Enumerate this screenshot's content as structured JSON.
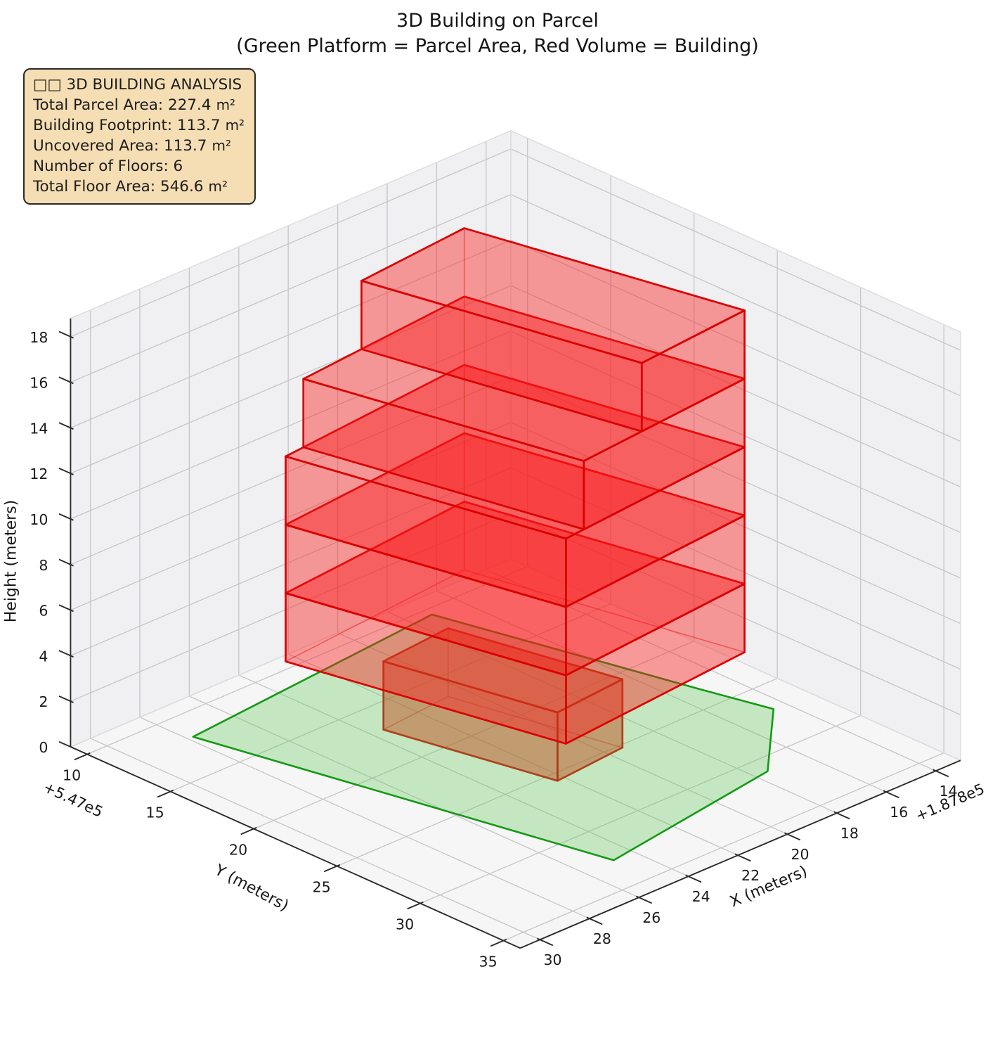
{
  "title": {
    "line1": "3D Building on Parcel",
    "line2": "(Green Platform = Parcel Area, Red Volume = Building)"
  },
  "info_box": {
    "header": "□□ 3D BUILDING ANALYSIS",
    "rows": [
      {
        "label": "Total Parcel Area:",
        "value": "227.4",
        "unit": "m²"
      },
      {
        "label": "Building Footprint:",
        "value": "113.7",
        "unit": "m²"
      },
      {
        "label": "Uncovered Area:",
        "value": "113.7",
        "unit": "m²"
      },
      {
        "label": "Number of Floors:",
        "value": "6",
        "unit": ""
      },
      {
        "label": "Total Floor Area:",
        "value": "546.6",
        "unit": "m²"
      }
    ],
    "bg_color": "#f5deb3",
    "border_color": "#2a2a2a"
  },
  "chart_data": {
    "type": "3d-building-plot",
    "title": "3D Building on Parcel",
    "subtitle": "(Green Platform = Parcel Area, Red Volume = Building)",
    "axes": {
      "x": {
        "label": "X (meters)",
        "ticks": [
          14,
          16,
          18,
          20,
          22,
          24,
          26,
          28,
          30
        ],
        "offset_text": "+1.878e5",
        "range": [
          13,
          30.8
        ]
      },
      "y": {
        "label": "Y (meters)",
        "ticks": [
          10,
          15,
          20,
          25,
          30,
          35
        ],
        "offset_text": "+5.47e5",
        "range": [
          9,
          36
        ]
      },
      "z": {
        "label": "Height (meters)",
        "ticks": [
          0,
          2,
          4,
          6,
          8,
          10,
          12,
          14,
          16,
          18
        ],
        "range": [
          0,
          18.8
        ]
      }
    },
    "stats": {
      "total_parcel_area_m2": 227.4,
      "building_footprint_m2": 113.7,
      "uncovered_area_m2": 113.7,
      "number_of_floors": 6,
      "total_floor_area_m2": 546.6,
      "floor_height_m": 3
    },
    "parcel": {
      "z": 0,
      "polygon_xy": [
        [
          17.2,
          10.5
        ],
        [
          15.1,
          23.5
        ],
        [
          14.5,
          27.0
        ],
        [
          17.5,
          31.1
        ],
        [
          24.8,
          32.7
        ],
        [
          27.8,
          11.9
        ]
      ],
      "fill": "rgba(95,200,85,0.33)",
      "edge": "#149a14"
    },
    "building_volumes": [
      {
        "name": "floor-1",
        "z0": 0,
        "z1": 3,
        "footprint_xy": [
          [
            23.53,
            16.99
          ],
          [
            22.29,
            25.6
          ],
          [
            19.41,
            25.22
          ],
          [
            20.66,
            16.61
          ]
        ],
        "fill": "rgba(190,75,25,0.48)",
        "edge": "rgba(173,60,22,0.95)"
      },
      {
        "name": "floor-2",
        "z0": 3,
        "z1": 6,
        "footprint_xy": [
          [
            25.56,
            14.13
          ],
          [
            23.56,
            27.99
          ],
          [
            15.63,
            26.94
          ],
          [
            17.63,
            13.08
          ]
        ],
        "fill": "rgba(250,25,25,0.42)",
        "edge": "#db0000"
      },
      {
        "name": "floor-3",
        "z0": 6,
        "z1": 9,
        "footprint_xy": [
          [
            25.56,
            14.13
          ],
          [
            23.56,
            27.99
          ],
          [
            15.63,
            26.94
          ],
          [
            17.63,
            13.08
          ]
        ],
        "fill": "rgba(250,25,25,0.42)",
        "edge": "#db0000"
      },
      {
        "name": "floor-4",
        "z0": 9,
        "z1": 12,
        "footprint_xy": [
          [
            25.56,
            14.13
          ],
          [
            23.56,
            27.99
          ],
          [
            15.63,
            26.94
          ],
          [
            17.63,
            13.08
          ]
        ],
        "fill": "rgba(250,25,25,0.42)",
        "edge": "#db0000"
      },
      {
        "name": "floor-5",
        "z0": 12,
        "z1": 15,
        "footprint_xy": [
          [
            24.77,
            14.02
          ],
          [
            22.76,
            27.88
          ],
          [
            15.63,
            26.94
          ],
          [
            17.63,
            13.08
          ]
        ],
        "fill": "rgba(250,25,25,0.42)",
        "edge": "#db0000"
      },
      {
        "name": "floor-6",
        "z0": 15,
        "z1": 18,
        "footprint_xy": [
          [
            22.19,
            13.68
          ],
          [
            20.19,
            27.54
          ],
          [
            15.63,
            26.94
          ],
          [
            17.63,
            13.08
          ]
        ],
        "fill": "rgba(250,25,25,0.42)",
        "edge": "#db0000"
      }
    ],
    "style": {
      "pane_side": "#f0f0f2",
      "pane_floor": "#f6f6f7",
      "grid": "#c6c6c9",
      "pane_edge": "#dcdcde",
      "spine": "#2b2b2b",
      "tick_text": "#1a1a1a"
    }
  }
}
